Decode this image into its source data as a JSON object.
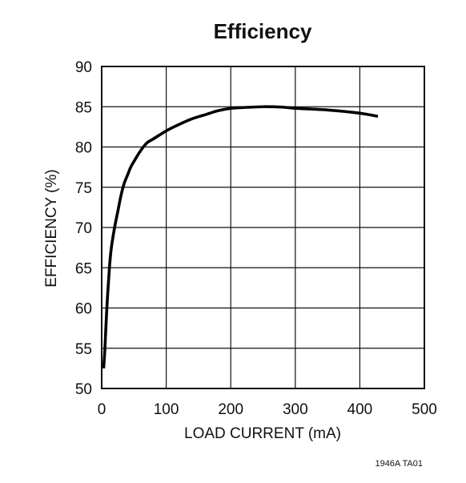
{
  "chart_data": {
    "type": "line",
    "title": "Efficiency",
    "xlabel": "LOAD CURRENT (mA)",
    "ylabel": "EFFICIENCY (%)",
    "xlim": [
      0,
      500
    ],
    "ylim": [
      50,
      90
    ],
    "x_ticks": [
      0,
      100,
      200,
      300,
      400,
      500
    ],
    "y_ticks": [
      50,
      55,
      60,
      65,
      70,
      75,
      80,
      85,
      90
    ],
    "x_tick_labels": [
      "0",
      "100",
      "200",
      "300",
      "400",
      "500"
    ],
    "y_tick_labels": [
      "50",
      "55",
      "60",
      "65",
      "70",
      "75",
      "80",
      "85",
      "90"
    ],
    "grid": true,
    "series": [
      {
        "points": [
          [
            3,
            52.5
          ],
          [
            5,
            55.0
          ],
          [
            8,
            60.0
          ],
          [
            12,
            65.0
          ],
          [
            15,
            67.5
          ],
          [
            20,
            70.0
          ],
          [
            25,
            72.0
          ],
          [
            30,
            74.0
          ],
          [
            35,
            75.5
          ],
          [
            40,
            76.5
          ],
          [
            45,
            77.5
          ],
          [
            50,
            78.2
          ],
          [
            60,
            79.5
          ],
          [
            70,
            80.5
          ],
          [
            80,
            81.0
          ],
          [
            100,
            82.0
          ],
          [
            120,
            82.8
          ],
          [
            140,
            83.5
          ],
          [
            160,
            84.0
          ],
          [
            180,
            84.5
          ],
          [
            200,
            84.8
          ],
          [
            220,
            84.9
          ],
          [
            250,
            85.0
          ],
          [
            280,
            84.95
          ],
          [
            300,
            84.8
          ],
          [
            350,
            84.6
          ],
          [
            400,
            84.2
          ],
          [
            428,
            83.8
          ]
        ]
      }
    ],
    "figure_code": "1946A TA01"
  }
}
